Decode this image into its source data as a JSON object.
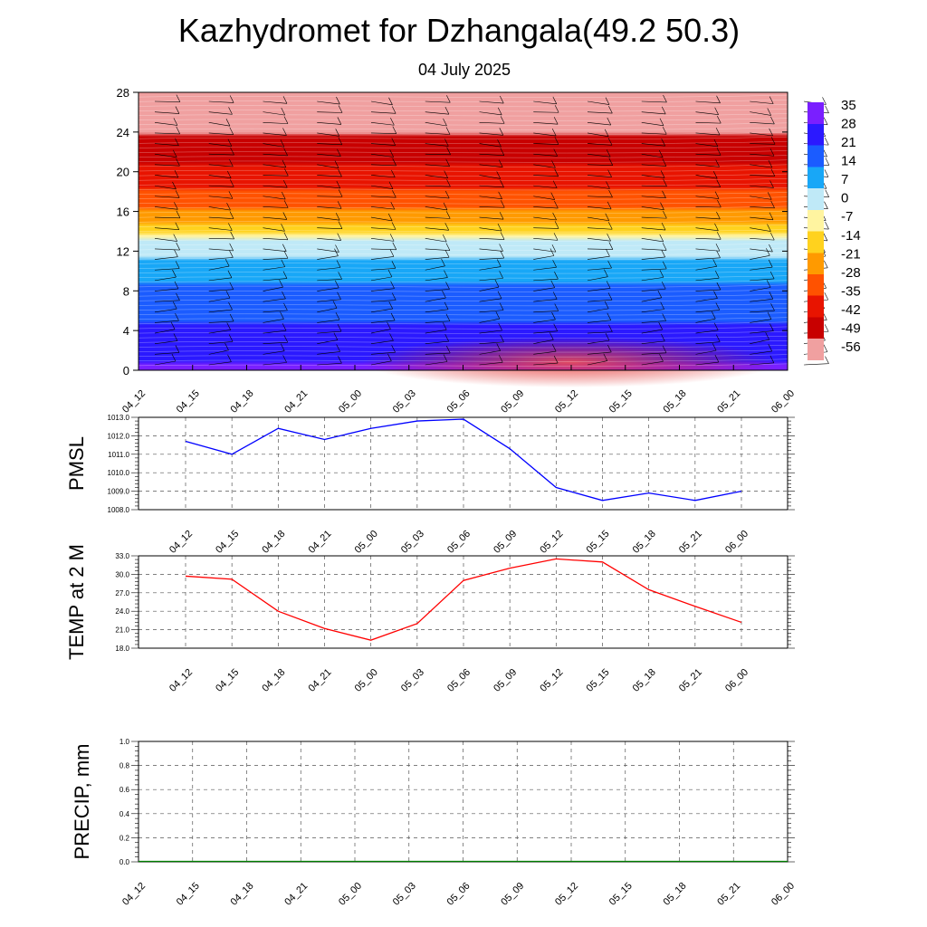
{
  "title": "Kazhydromet for Dzhangala(49.2 50.3)",
  "subtitle": "04 July 2025",
  "chart_data": [
    {
      "type": "heatmap",
      "name": "vertical temperature cross-section with wind barbs",
      "x_ticks": [
        "04_12",
        "04_15",
        "04_18",
        "04_21",
        "05_00",
        "05_03",
        "05_06",
        "05_09",
        "05_12",
        "05_15",
        "05_18",
        "05_21",
        "06_00"
      ],
      "y_ticks": [
        "0",
        "4",
        "8",
        "12",
        "16",
        "20",
        "24",
        "28"
      ],
      "ylim": [
        0,
        28
      ],
      "colorbar": {
        "labels": [
          "35",
          "28",
          "21",
          "14",
          "7",
          "0",
          "-7",
          "-14",
          "-21",
          "-28",
          "-35",
          "-42",
          "-49",
          "-56"
        ],
        "range": [
          -63,
          38
        ],
        "colors": [
          "#7a1fff",
          "#2b19ff",
          "#1b5cff",
          "#18a7f7",
          "#bfe9f7",
          "#fff4a0",
          "#ffd21e",
          "#ff9a00",
          "#ff5200",
          "#e81400",
          "#c80000",
          "#f0a0a0"
        ]
      },
      "temperature_profile_by_height": [
        [
          0,
          31
        ],
        [
          2,
          28
        ],
        [
          4,
          24
        ],
        [
          6,
          18
        ],
        [
          8,
          14
        ],
        [
          10,
          9
        ],
        [
          12,
          2
        ],
        [
          13,
          -3
        ],
        [
          14,
          -16
        ],
        [
          15,
          -22
        ],
        [
          16,
          -28
        ],
        [
          18,
          -36
        ],
        [
          20,
          -44
        ],
        [
          22,
          -50
        ],
        [
          24,
          -55
        ],
        [
          26,
          -58
        ],
        [
          28,
          -60
        ]
      ]
    },
    {
      "type": "line",
      "ylabel": "PMSL",
      "x": [
        "04_12",
        "04_15",
        "04_18",
        "04_21",
        "05_00",
        "05_03",
        "05_06",
        "05_09",
        "05_12",
        "05_15",
        "05_18",
        "05_21",
        "06_00"
      ],
      "series": [
        {
          "color": "#0000ff",
          "values": [
            1011.7,
            1011.0,
            1012.4,
            1011.8,
            1012.4,
            1012.8,
            1012.9,
            1011.3,
            1009.2,
            1008.5,
            1008.9,
            1008.5,
            1009.0
          ]
        }
      ],
      "y_ticks": [
        "1008.0",
        "1009.0",
        "1010.0",
        "1011.0",
        "1012.0",
        "1013.0"
      ],
      "ylim": [
        1008.0,
        1013.0
      ]
    },
    {
      "type": "line",
      "ylabel": "TEMP at 2 M",
      "x": [
        "04_12",
        "04_15",
        "04_18",
        "04_21",
        "05_00",
        "05_03",
        "05_06",
        "05_09",
        "05_12",
        "05_15",
        "05_18",
        "05_21",
        "06_00"
      ],
      "series": [
        {
          "color": "#ff0000",
          "values": [
            29.7,
            29.2,
            24.0,
            21.2,
            19.3,
            22.0,
            29.0,
            31.0,
            32.5,
            32.0,
            27.5,
            24.8,
            22.2
          ]
        }
      ],
      "y_ticks": [
        "18.0",
        "21.0",
        "24.0",
        "27.0",
        "30.0",
        "33.0"
      ],
      "ylim": [
        18.0,
        33.0
      ]
    },
    {
      "type": "line",
      "ylabel": "PRECIP, mm",
      "x_ticks": [
        "04_12",
        "04_15",
        "04_18",
        "04_21",
        "05_00",
        "05_03",
        "05_06",
        "05_09",
        "05_12",
        "05_15",
        "05_18",
        "05_21",
        "06_00"
      ],
      "series": [
        {
          "color": "#008000",
          "values": [
            0,
            0,
            0,
            0,
            0,
            0,
            0,
            0,
            0,
            0,
            0,
            0,
            0
          ]
        }
      ],
      "y_ticks": [
        "0.0",
        "0.2",
        "0.4",
        "0.6",
        "0.8",
        "1.0"
      ],
      "ylim": [
        0.0,
        1.0
      ]
    }
  ]
}
